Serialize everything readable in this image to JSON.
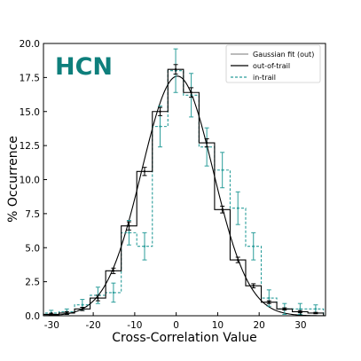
{
  "chart_data": {
    "type": "histogram",
    "annotation": "HCN",
    "xlabel": "Cross-Correlation Value",
    "ylabel": "% Occurrence",
    "xlim": [
      -32,
      36
    ],
    "ylim": [
      0,
      20
    ],
    "xticks": [
      -30,
      -20,
      -10,
      0,
      10,
      20,
      30
    ],
    "yticks": [
      0.0,
      2.5,
      5.0,
      7.5,
      10.0,
      12.5,
      15.0,
      17.5,
      20.0
    ],
    "ytick_labels": [
      "0.0",
      "2.5",
      "5.0",
      "7.5",
      "10.0",
      "12.5",
      "15.0",
      "17.5",
      "20.0"
    ],
    "legend": {
      "position": "top-right",
      "entries": [
        "Gaussian fit (out)",
        "out-of-trail",
        "in-trail"
      ]
    },
    "colors": {
      "out": "#000000",
      "in": "#2a9d9a",
      "annotation": "#0e7f7c"
    },
    "bin_edges": [
      -32,
      -28.25,
      -24.5,
      -20.75,
      -17,
      -13.25,
      -9.5,
      -5.75,
      -2,
      1.75,
      5.5,
      9.25,
      13,
      16.75,
      20.5,
      24.25,
      28,
      31.75,
      35.5
    ],
    "series": [
      {
        "name": "out-of-trail",
        "style": "solid-step",
        "values": [
          0.1,
          0.2,
          0.5,
          1.3,
          3.3,
          6.6,
          10.6,
          15.0,
          18.1,
          16.4,
          12.7,
          7.8,
          4.1,
          2.2,
          1.0,
          0.5,
          0.3,
          0.2
        ],
        "errors": [
          0.08,
          0.1,
          0.12,
          0.2,
          0.2,
          0.3,
          0.3,
          0.3,
          0.35,
          0.35,
          0.3,
          0.25,
          0.2,
          0.15,
          0.1,
          0.08,
          0.08,
          0.05
        ]
      },
      {
        "name": "in-trail",
        "style": "dashed-step",
        "values": [
          0.2,
          0.3,
          0.8,
          1.5,
          1.7,
          6.1,
          5.1,
          13.9,
          18.0,
          16.2,
          12.4,
          10.7,
          7.9,
          5.1,
          1.3,
          0.5,
          0.5,
          0.5
        ],
        "errors": [
          0.2,
          0.2,
          0.4,
          0.6,
          0.7,
          0.9,
          1.0,
          1.5,
          1.6,
          1.6,
          1.4,
          1.3,
          1.2,
          1.0,
          0.6,
          0.4,
          0.4,
          0.3
        ]
      }
    ],
    "fit": {
      "name": "Gaussian fit (out)",
      "amplitude": 17.6,
      "mean": 0.3,
      "sigma": 8.6
    }
  }
}
